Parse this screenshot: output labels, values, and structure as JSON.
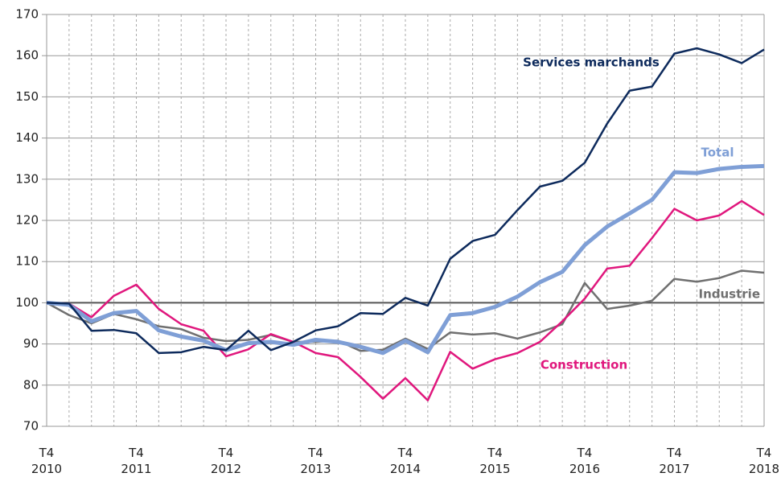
{
  "chart_data": {
    "type": "line",
    "categories": [
      "T4 2010",
      null,
      null,
      null,
      "T4 2011",
      null,
      null,
      null,
      "T4 2012",
      null,
      null,
      null,
      "T4 2013",
      null,
      null,
      null,
      "T4 2014",
      null,
      null,
      null,
      "T4 2015",
      null,
      null,
      null,
      "T4 2016",
      null,
      null,
      null,
      "T4 2017",
      null,
      null,
      null,
      "T4 2018"
    ],
    "series": [
      {
        "name": "Industrie",
        "color": "#707070",
        "width": 2.5,
        "values": [
          100,
          97,
          95,
          97.3,
          96,
          94.3,
          93.6,
          91.5,
          90.7,
          91,
          92.2,
          90.5,
          90.5,
          90.8,
          88.3,
          88.6,
          91.3,
          88.8,
          92.8,
          92.3,
          92.6,
          91.3,
          92.8,
          94.8,
          104.8,
          98.5,
          99.3,
          100.5,
          105.8,
          105.1,
          106,
          107.8,
          107.3
        ]
      },
      {
        "name": "Construction",
        "color": "#e0177d",
        "width": 2.5,
        "values": [
          100,
          99.8,
          96.5,
          101.7,
          104.4,
          98.5,
          94.8,
          93.2,
          87,
          88.7,
          92.4,
          90.5,
          87.8,
          86.8,
          82,
          76.7,
          81.7,
          76.3,
          88.1,
          84,
          86.3,
          87.8,
          90.5,
          95.5,
          101,
          108.3,
          109,
          115.7,
          122.8,
          120,
          121.2,
          124.7,
          121.3
        ]
      },
      {
        "name": "Total",
        "color": "#7f9fd6",
        "width": 5,
        "values": [
          100,
          99.5,
          95.5,
          97.5,
          98,
          93.3,
          91.8,
          90.8,
          88.5,
          90.2,
          90.5,
          89.8,
          91,
          90.5,
          89.3,
          87.8,
          90.8,
          88,
          97,
          97.5,
          99,
          101.5,
          105,
          107.5,
          114,
          118.5,
          121.7,
          125,
          131.7,
          131.5,
          132.5,
          133,
          133.2
        ]
      },
      {
        "name": "Services marchands",
        "color": "#0d2a5c",
        "width": 2.5,
        "values": [
          100,
          99.8,
          93.2,
          93.4,
          92.6,
          87.8,
          88,
          89.3,
          88.5,
          93.2,
          88.5,
          90.5,
          93.3,
          94.3,
          97.5,
          97.3,
          101.2,
          99.3,
          110.7,
          115,
          116.5,
          122.5,
          128.2,
          129.6,
          134,
          143.5,
          151.5,
          152.5,
          160.5,
          161.8,
          160.3,
          158.2,
          161.5
        ]
      }
    ],
    "ylim": [
      70,
      170
    ],
    "yticks": [
      70,
      80,
      90,
      100,
      110,
      120,
      130,
      140,
      150,
      160,
      170
    ],
    "reference_line": 100,
    "grid": true
  }
}
